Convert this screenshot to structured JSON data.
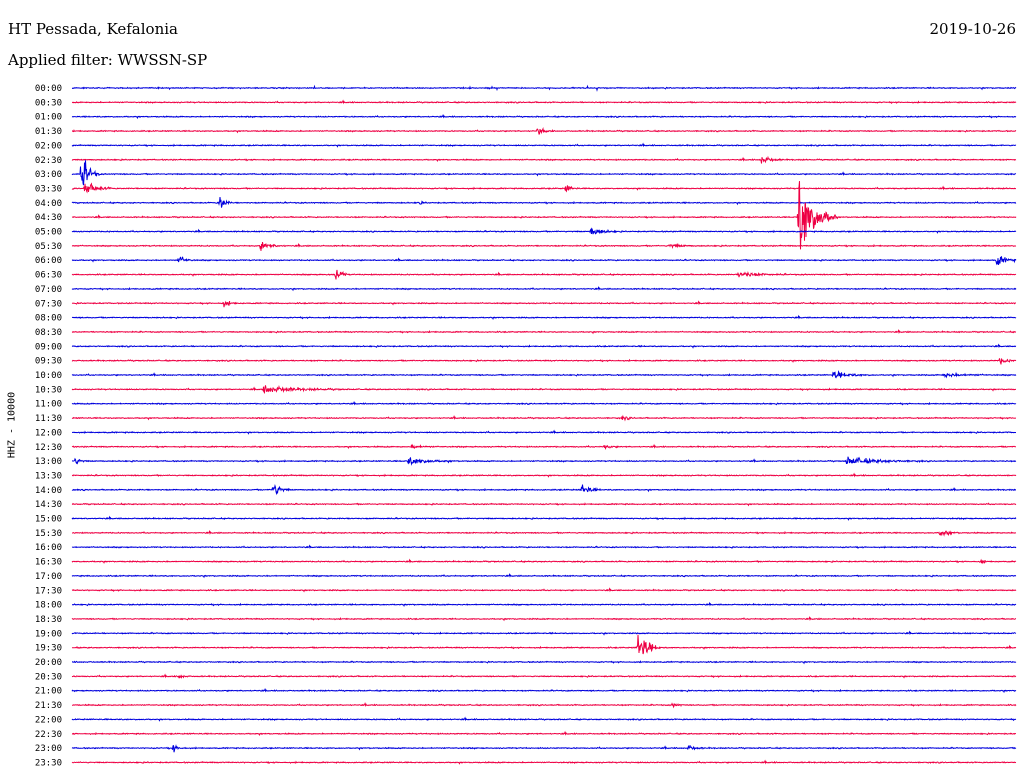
{
  "header": {
    "station": "HT Pessada, Kefalonia",
    "date": "2019-10-26",
    "filter": "Applied filter: WWSSN-SP"
  },
  "ylabel": "HHZ - 10000",
  "chart_data": {
    "type": "line",
    "title": "HT Pessada, Kefalonia",
    "subtitle": "Applied filter: WWSSN-SP",
    "ylabel": "HHZ - 10000",
    "y_tick_labels": [
      "00:00",
      "00:30",
      "01:00",
      "01:30",
      "02:00",
      "02:30",
      "03:00",
      "03:30",
      "04:00",
      "04:30",
      "05:00",
      "05:30",
      "06:00",
      "06:30",
      "07:00",
      "07:30",
      "08:00",
      "08:30",
      "09:00",
      "09:30",
      "10:00",
      "10:30",
      "11:00",
      "11:30",
      "12:00",
      "12:30",
      "13:00",
      "13:30",
      "14:00",
      "14:30",
      "15:00",
      "15:30",
      "16:00",
      "16:30",
      "17:00",
      "17:30",
      "18:00",
      "18:30",
      "19:00",
      "19:30",
      "20:00",
      "20:30",
      "21:00",
      "21:30",
      "22:00",
      "22:30",
      "23:00",
      "23:30"
    ],
    "x_range_minutes": [
      0,
      30
    ],
    "colors": {
      "even_rows": "#0000dd",
      "odd_rows": "#ee0044"
    },
    "events": [
      {
        "row": 3,
        "minute": 14.8,
        "amplitude": 0.5,
        "duration": 0.5
      },
      {
        "row": 5,
        "minute": 21.9,
        "amplitude": 0.6,
        "duration": 0.7
      },
      {
        "row": 6,
        "minute": 0.3,
        "amplitude": 2.5,
        "duration": 0.6
      },
      {
        "row": 7,
        "minute": 0.4,
        "amplitude": 0.9,
        "duration": 0.9
      },
      {
        "row": 7,
        "minute": 15.7,
        "amplitude": 0.5,
        "duration": 0.4
      },
      {
        "row": 8,
        "minute": 4.7,
        "amplitude": 1.1,
        "duration": 0.4
      },
      {
        "row": 8,
        "minute": 11.0,
        "amplitude": 0.3,
        "duration": 0.3
      },
      {
        "row": 9,
        "minute": 23.1,
        "amplitude": 6.0,
        "duration": 1.2
      },
      {
        "row": 10,
        "minute": 16.5,
        "amplitude": 0.6,
        "duration": 0.8
      },
      {
        "row": 11,
        "minute": 6.0,
        "amplitude": 0.6,
        "duration": 0.8
      },
      {
        "row": 11,
        "minute": 19.0,
        "amplitude": 0.3,
        "duration": 0.8
      },
      {
        "row": 12,
        "minute": 3.4,
        "amplitude": 0.6,
        "duration": 0.5
      },
      {
        "row": 12,
        "minute": 29.4,
        "amplitude": 0.8,
        "duration": 0.7
      },
      {
        "row": 13,
        "minute": 8.4,
        "amplitude": 1.0,
        "duration": 0.4
      },
      {
        "row": 13,
        "minute": 21.2,
        "amplitude": 0.4,
        "duration": 1.5
      },
      {
        "row": 15,
        "minute": 4.8,
        "amplitude": 0.4,
        "duration": 0.6
      },
      {
        "row": 19,
        "minute": 29.5,
        "amplitude": 0.5,
        "duration": 0.5
      },
      {
        "row": 20,
        "minute": 24.2,
        "amplitude": 0.5,
        "duration": 1.2
      },
      {
        "row": 20,
        "minute": 27.7,
        "amplitude": 0.3,
        "duration": 1.5
      },
      {
        "row": 21,
        "minute": 6.1,
        "amplitude": 0.5,
        "duration": 2.5
      },
      {
        "row": 23,
        "minute": 17.5,
        "amplitude": 0.3,
        "duration": 0.4
      },
      {
        "row": 25,
        "minute": 10.8,
        "amplitude": 0.3,
        "duration": 0.7
      },
      {
        "row": 25,
        "minute": 16.9,
        "amplitude": 0.3,
        "duration": 0.5
      },
      {
        "row": 26,
        "minute": 0.1,
        "amplitude": 0.5,
        "duration": 0.4
      },
      {
        "row": 26,
        "minute": 10.7,
        "amplitude": 0.5,
        "duration": 1.5
      },
      {
        "row": 26,
        "minute": 24.6,
        "amplitude": 0.5,
        "duration": 2.5
      },
      {
        "row": 28,
        "minute": 6.4,
        "amplitude": 1.2,
        "duration": 0.5
      },
      {
        "row": 28,
        "minute": 16.2,
        "amplitude": 0.8,
        "duration": 0.6
      },
      {
        "row": 31,
        "minute": 27.6,
        "amplitude": 0.6,
        "duration": 0.6
      },
      {
        "row": 33,
        "minute": 28.9,
        "amplitude": 0.4,
        "duration": 0.2
      },
      {
        "row": 39,
        "minute": 18.0,
        "amplitude": 2.5,
        "duration": 0.7
      },
      {
        "row": 41,
        "minute": 3.4,
        "amplitude": 0.3,
        "duration": 0.4
      },
      {
        "row": 43,
        "minute": 19.1,
        "amplitude": 0.3,
        "duration": 0.4
      },
      {
        "row": 46,
        "minute": 3.2,
        "amplitude": 0.5,
        "duration": 0.5
      },
      {
        "row": 46,
        "minute": 19.6,
        "amplitude": 0.4,
        "duration": 0.5
      }
    ]
  }
}
